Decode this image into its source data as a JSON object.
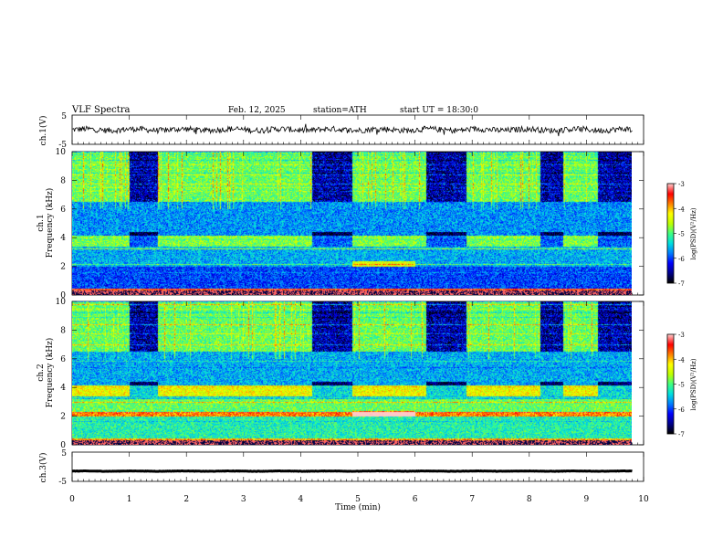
{
  "header": {
    "title": "VLF Spectra",
    "date": "Feb. 12, 2025",
    "station": "station=ATH",
    "start_ut": "start UT = 18:30:0"
  },
  "colors": {
    "background": "#ffffff",
    "trace": "#000000",
    "colormap": [
      "#000000",
      "#00008f",
      "#0000ff",
      "#0080ff",
      "#00e0e0",
      "#40ff80",
      "#c0ff00",
      "#ffff00",
      "#ff8000",
      "#ff0000",
      "#ffc8c8"
    ]
  },
  "chart_data": [
    {
      "type": "line",
      "name": "ch1-waveform",
      "ylabel": "ch.1(V)",
      "ylim": [
        -5,
        5
      ],
      "yticks": [
        "5",
        "-5"
      ],
      "xlim": [
        0,
        10
      ],
      "description_values": {
        "baseline": 0,
        "typical_amplitude": 1.0
      }
    },
    {
      "type": "heatmap",
      "name": "ch1-spectrogram",
      "ylabel_lines": [
        "ch.1",
        "Frequency (kHz)"
      ],
      "ylim": [
        0,
        10
      ],
      "yticks": [
        "0",
        "2",
        "4",
        "6",
        "8",
        "10"
      ],
      "xlim": [
        0,
        9.8
      ],
      "colorbar": {
        "label": "log(PSD)(V²/Hz)",
        "range": [
          -7,
          -3
        ],
        "ticks": [
          "-3",
          "-4",
          "-5",
          "-6",
          "-7"
        ]
      },
      "quiet_intervals_min": [
        [
          1.0,
          1.5
        ],
        [
          4.2,
          4.9
        ],
        [
          6.2,
          6.9
        ],
        [
          8.2,
          8.6
        ],
        [
          9.2,
          9.8
        ]
      ],
      "enhanced_interval_min": [
        4.9,
        6.0
      ],
      "bands": [
        {
          "freq_khz": [
            0,
            0.5
          ],
          "log_psd": -3.5
        },
        {
          "freq_khz": [
            0.5,
            2.0
          ],
          "log_psd": -6.0
        },
        {
          "freq_khz": [
            2.0,
            3.2
          ],
          "log_psd": -5.6
        },
        {
          "freq_khz": [
            3.4,
            4.2
          ],
          "log_psd": -4.8
        },
        {
          "freq_khz": [
            4.2,
            6.5
          ],
          "log_psd": -5.7
        },
        {
          "freq_khz": [
            6.5,
            10.0
          ],
          "log_psd": -4.9
        }
      ]
    },
    {
      "type": "heatmap",
      "name": "ch2-spectrogram",
      "ylabel_lines": [
        "ch.2",
        "Frequency (kHz)"
      ],
      "ylim": [
        0,
        10
      ],
      "yticks": [
        "0",
        "2",
        "4",
        "6",
        "8",
        "10"
      ],
      "xlim": [
        0,
        9.8
      ],
      "colorbar": {
        "label": "log(PSD)(V²/Hz)",
        "range": [
          -7,
          -3
        ],
        "ticks": [
          "-3",
          "-4",
          "-5",
          "-6",
          "-7"
        ]
      },
      "quiet_intervals_min": [
        [
          1.0,
          1.5
        ],
        [
          4.2,
          4.9
        ],
        [
          6.2,
          6.9
        ],
        [
          8.2,
          8.6
        ],
        [
          9.2,
          9.8
        ]
      ],
      "enhanced_interval_min": [
        4.9,
        6.0
      ],
      "bands": [
        {
          "freq_khz": [
            0,
            0.5
          ],
          "log_psd": -4.0
        },
        {
          "freq_khz": [
            0.5,
            2.0
          ],
          "log_psd": -5.2
        },
        {
          "freq_khz": [
            2.0,
            2.3
          ],
          "log_psd": -3.8
        },
        {
          "freq_khz": [
            2.3,
            3.2
          ],
          "log_psd": -4.9
        },
        {
          "freq_khz": [
            3.4,
            4.2
          ],
          "log_psd": -4.3
        },
        {
          "freq_khz": [
            4.2,
            6.5
          ],
          "log_psd": -5.6
        },
        {
          "freq_khz": [
            6.5,
            10.0
          ],
          "log_psd": -4.9
        }
      ]
    },
    {
      "type": "line",
      "name": "ch3-waveform",
      "ylabel": "ch.3(V)",
      "ylim": [
        -5,
        5
      ],
      "yticks": [
        "5",
        "-5"
      ],
      "xlim": [
        0,
        10
      ],
      "xlabel": "Time (min)",
      "xticks": [
        "0",
        "1",
        "2",
        "3",
        "4",
        "5",
        "6",
        "7",
        "8",
        "9",
        "10"
      ],
      "description_values": {
        "baseline": -1.5,
        "typical_amplitude": 0.2
      }
    }
  ]
}
